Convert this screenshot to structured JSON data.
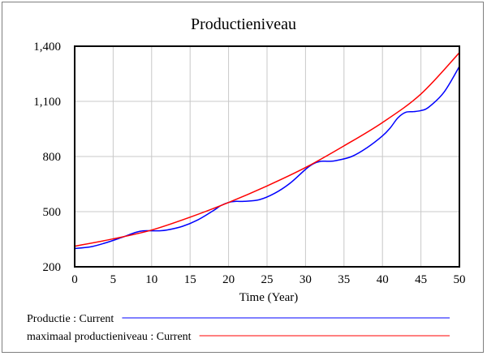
{
  "chart_data": {
    "type": "line",
    "title": "Productieniveau",
    "xlabel": "Time (Year)",
    "ylabel": "",
    "xlim": [
      0,
      50
    ],
    "ylim": [
      200,
      1400
    ],
    "x_ticks": [
      0,
      5,
      10,
      15,
      20,
      25,
      30,
      35,
      40,
      45,
      50
    ],
    "y_ticks": [
      200,
      500,
      800,
      1100,
      1400
    ],
    "y_tick_labels": [
      "200",
      "500",
      "800",
      "1,100",
      "1,400"
    ],
    "grid": true,
    "legend_position": "bottom",
    "series": [
      {
        "name": "Productie : Current",
        "color": "#0000ff",
        "x": [
          0,
          2,
          4,
          6,
          8,
          9,
          10,
          11,
          12,
          14,
          16,
          18,
          19,
          20,
          21,
          22,
          24,
          26,
          28,
          30,
          31,
          32,
          33,
          34,
          36,
          38,
          40,
          41,
          42,
          43,
          44,
          45,
          46,
          48,
          50
        ],
        "y": [
          300,
          308,
          330,
          358,
          388,
          396,
          396,
          396,
          400,
          420,
          455,
          505,
          533,
          550,
          556,
          556,
          565,
          600,
          655,
          730,
          760,
          774,
          774,
          778,
          800,
          848,
          912,
          955,
          1010,
          1040,
          1044,
          1050,
          1068,
          1150,
          1290
        ]
      },
      {
        "name": "maximaal productieniveau : Current",
        "color": "#ff0000",
        "x": [
          0,
          5,
          10,
          15,
          20,
          25,
          30,
          35,
          40,
          45,
          50
        ],
        "y": [
          312,
          352,
          400,
          470,
          550,
          640,
          740,
          858,
          985,
          1140,
          1365
        ]
      }
    ],
    "legend": [
      {
        "label": "Productie : Current",
        "color": "#0000ff"
      },
      {
        "label": "maximaal productieniveau : Current",
        "color": "#ff0000"
      }
    ]
  }
}
